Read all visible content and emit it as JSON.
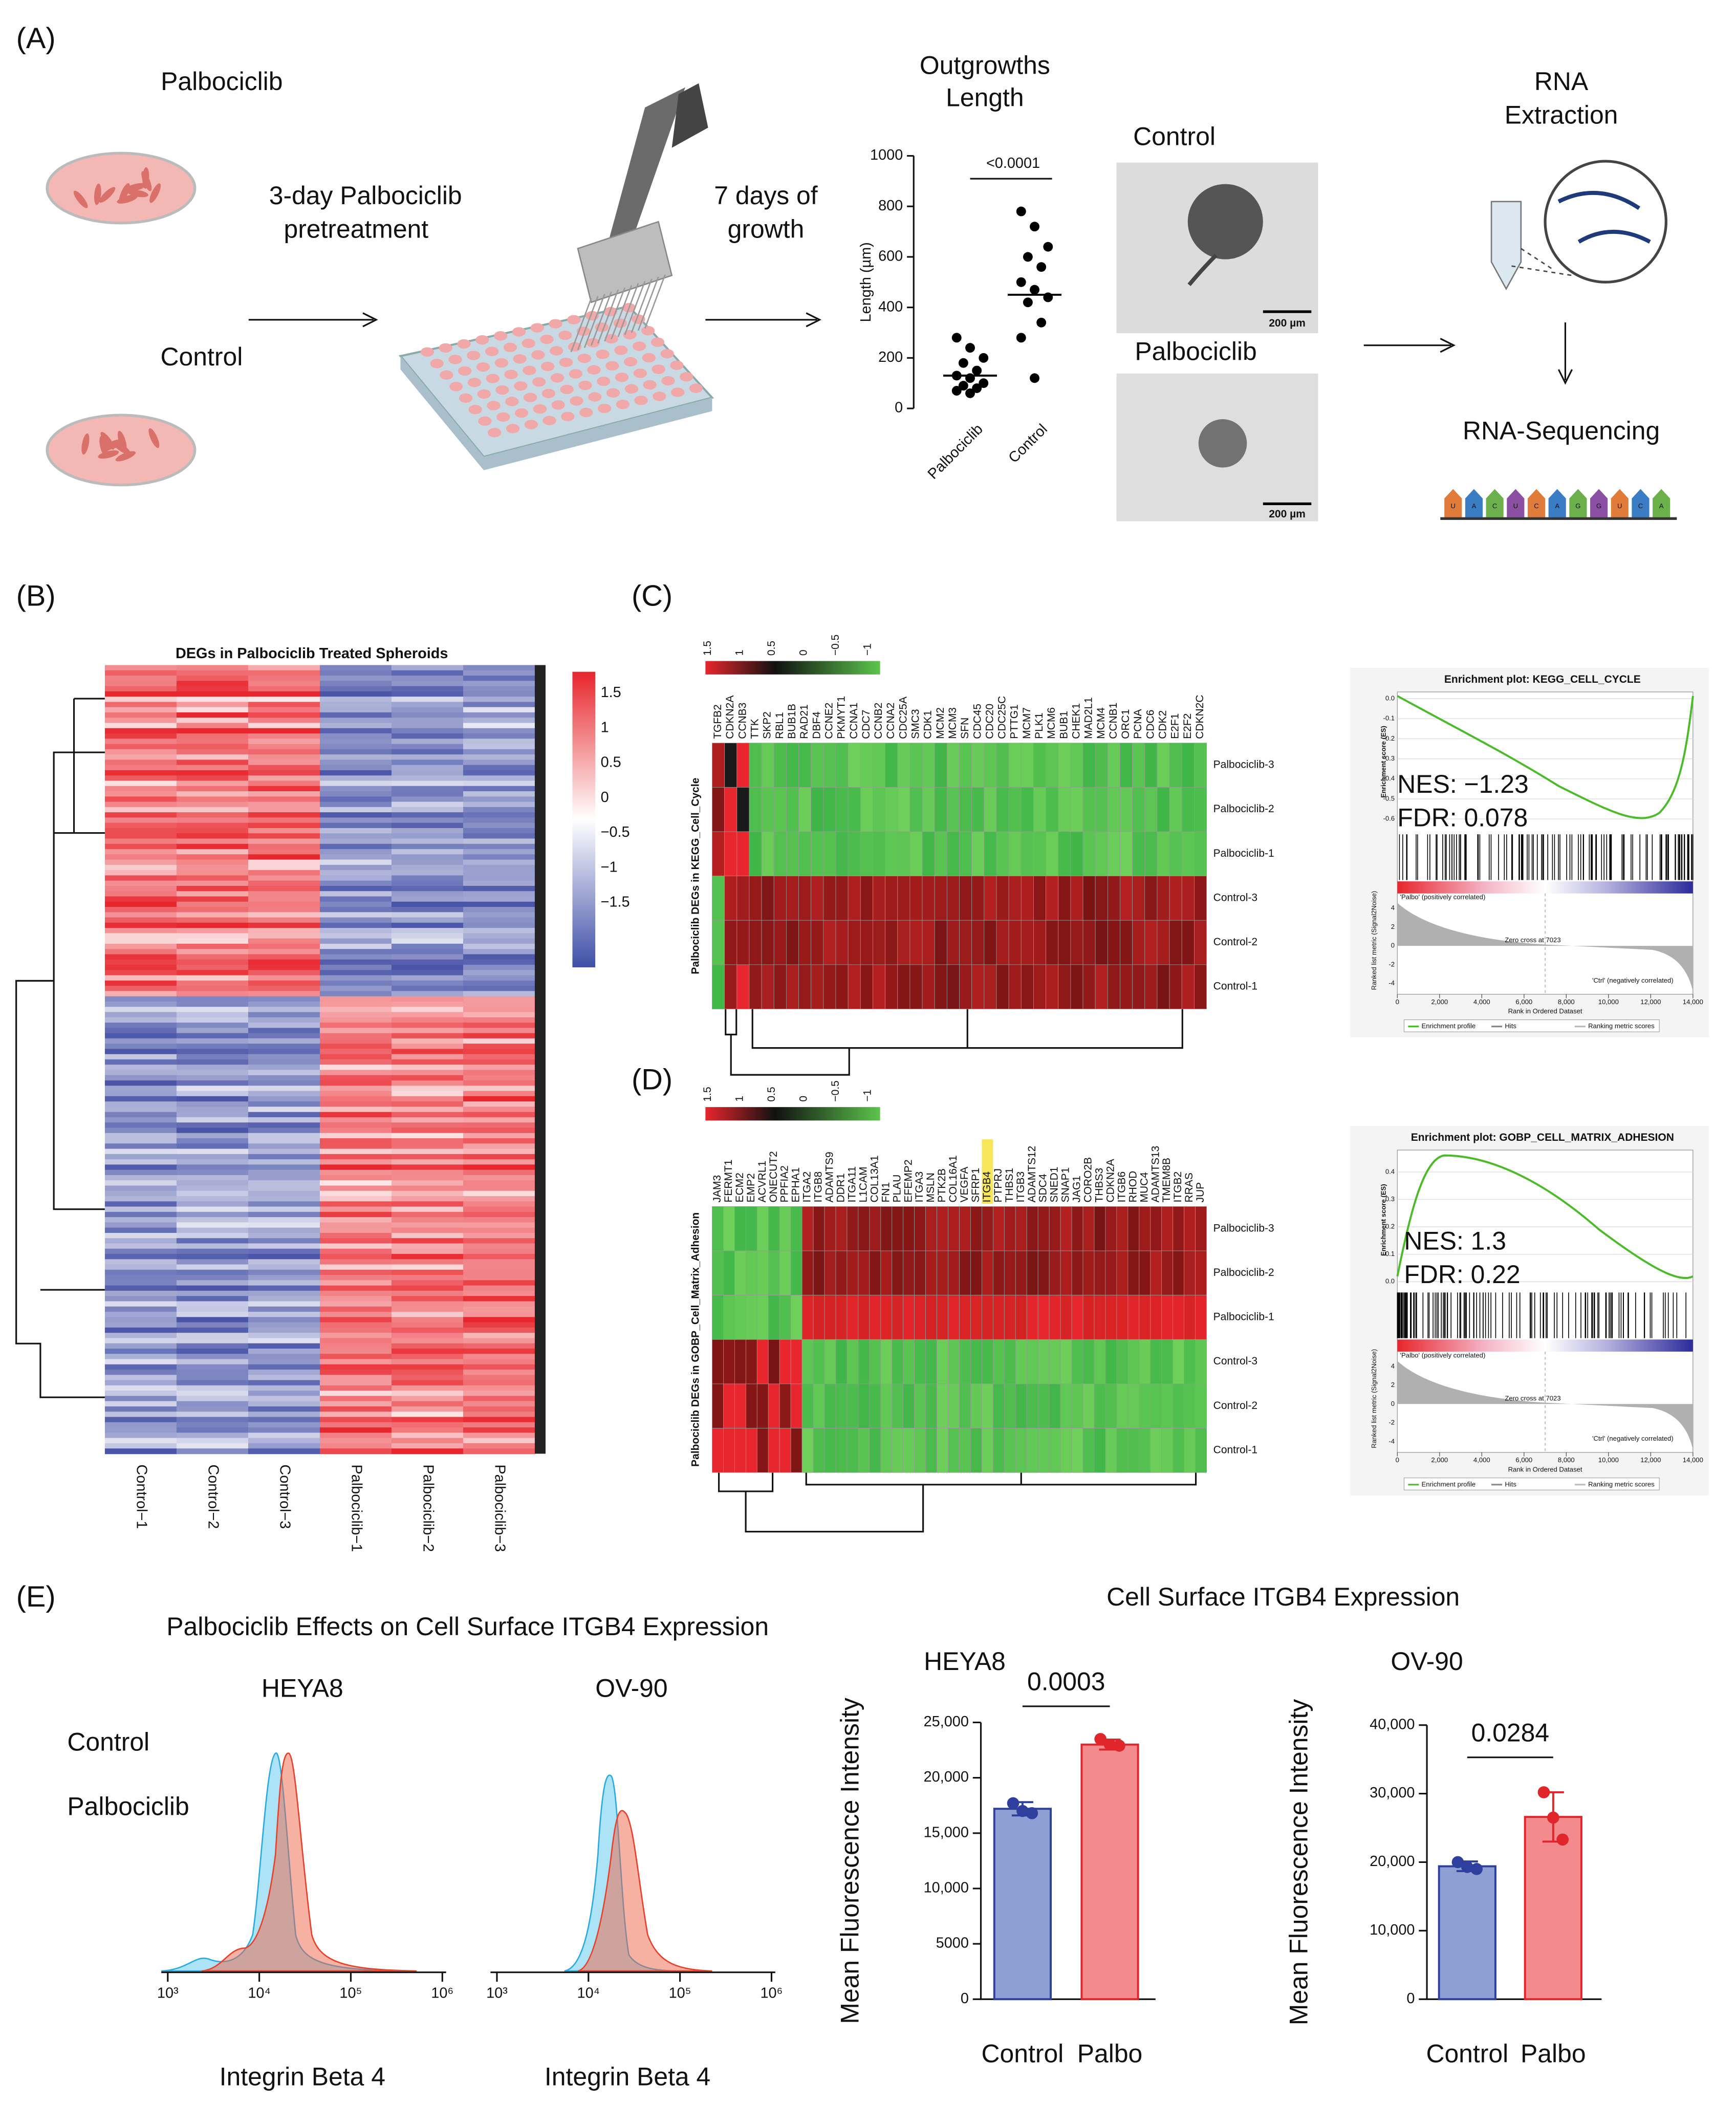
{
  "panel_labels": [
    "(A)",
    "(B)",
    "(C)",
    "(D)",
    "(E)"
  ],
  "schematic": {
    "palbociclib": "Palbociclib",
    "control": "Control",
    "pretreatment": [
      "3-day Palbociclib",
      "pretreatment"
    ],
    "growth": [
      "7 days of",
      "growth"
    ],
    "image_labels": [
      "Control",
      "Palbociclib"
    ],
    "scale_bar": "200 µm",
    "rna_extraction": [
      "RNA",
      "Extraction"
    ],
    "rna_sequencing": "RNA-Sequencing",
    "rna_bases": [
      "U",
      "A",
      "C",
      "U",
      "C",
      "A",
      "G",
      "G",
      "U",
      "C",
      "A"
    ]
  },
  "chart_data": [
    {
      "type": "dot",
      "title": [
        "Outgrowths",
        "Length"
      ],
      "ylabel": "Length (µm)",
      "categories": [
        "Palbociclib",
        "Control"
      ],
      "groups": [
        [
          280,
          240,
          200,
          180,
          150,
          130,
          120,
          100,
          90,
          80,
          70,
          60
        ],
        [
          780,
          720,
          640,
          600,
          560,
          500,
          470,
          440,
          420,
          340,
          280,
          120
        ]
      ],
      "medians": [
        130,
        450
      ],
      "annotation": "<0.0001",
      "ylim": [
        0,
        1000
      ],
      "yticks": [
        0,
        200,
        400,
        600,
        800,
        1000
      ],
      "color": "#000000"
    },
    {
      "type": "bar",
      "title": "HEYA8",
      "ylabel": "Mean Fluorescence Intensity",
      "categories": [
        "Control",
        "Palbo"
      ],
      "values": [
        17200,
        23000
      ],
      "errors": [
        600,
        450
      ],
      "points": [
        [
          17700,
          17000,
          16800
        ],
        [
          23500,
          23000,
          22900
        ]
      ],
      "colors": [
        "#8e9fd3",
        "#f28a8e"
      ],
      "edge_colors": [
        "#2e3f9e",
        "#e0252b"
      ],
      "annotation": "0.0003",
      "ylim": [
        0,
        25000
      ],
      "yticks": [
        0,
        5000,
        {
          "value": 10000,
          "label": "10,000"
        },
        {
          "value": 15000,
          "label": "15,000"
        },
        {
          "value": 20000,
          "label": "20,000"
        },
        {
          "value": 25000,
          "label": "25,000"
        }
      ]
    },
    {
      "type": "bar",
      "title": "OV-90",
      "ylabel": "Mean Fluorescence Intensity",
      "categories": [
        "Control",
        "Palbo"
      ],
      "values": [
        19400,
        26600
      ],
      "errors": [
        700,
        3600
      ],
      "points": [
        [
          20000,
          19300,
          19000
        ],
        [
          30200,
          26500,
          23300
        ]
      ],
      "colors": [
        "#8e9fd3",
        "#f28a8e"
      ],
      "edge_colors": [
        "#2e3f9e",
        "#e0252b"
      ],
      "annotation": "0.0284",
      "ylim": [
        0,
        40000
      ],
      "yticks": [
        0,
        {
          "value": 10000,
          "label": "10,000"
        },
        {
          "value": 20000,
          "label": "20,000"
        },
        {
          "value": 30000,
          "label": "30,000"
        },
        {
          "value": 40000,
          "label": "40,000"
        }
      ]
    }
  ],
  "bar_supertitle": "Cell Surface ITGB4 Expression",
  "heatmap_b": {
    "title": "DEGs in Palbociclib Treated Spheroids",
    "columns": [
      "Control−1",
      "Control−2",
      "Control−3",
      "Palbociclib−1",
      "Palbociclib−2",
      "Palbociclib−3"
    ],
    "colorbar_ticks": [
      1.5,
      1,
      0.5,
      0,
      {
        "value": -0.5,
        "label": "−0.5"
      },
      {
        "value": -1,
        "label": "−1"
      },
      {
        "value": -1.5,
        "label": "−1.5"
      }
    ]
  },
  "heatmap_c": {
    "ylabel": "Palbociclib DEGs in KEGG_Cell_Cycle",
    "rows": [
      "Palbociclib-3",
      "Palbociclib-2",
      "Palbociclib-1",
      "Control-3",
      "Control-2",
      "Control-1"
    ],
    "genes": [
      "TGFB2",
      "CDKN2A",
      "CCNB3",
      "TTK",
      "SKP2",
      "RBL1",
      "BUB1B",
      "RAD21",
      "DBF4",
      "CCNE2",
      "PKMYT1",
      "CCNA1",
      "CDC7",
      "CCNB2",
      "CCNA2",
      "CDC25A",
      "SMC3",
      "CDK1",
      "MCM2",
      "MCM3",
      "SFN",
      "CDC45",
      "CDC20",
      "CDC25C",
      "PTTG1",
      "MCM7",
      "PLK1",
      "MCM6",
      "BUB1",
      "CHEK1",
      "MAD2L1",
      "MCM4",
      "CCNB1",
      "ORC1",
      "PCNA",
      "CDC6",
      "CDK2",
      "E2F1",
      "E2F2",
      "CDKN2C"
    ],
    "colorbar_ticks": [
      1.5,
      1,
      0.5,
      0,
      {
        "value": -0.5,
        "label": "−0.5"
      },
      {
        "value": -1,
        "label": "−1"
      }
    ]
  },
  "heatmap_d": {
    "ylabel": "Palbociclib DEGs in GOBP_Cell_Matrix_Adhesion",
    "rows": [
      "Palbociclib-3",
      "Palbociclib-2",
      "Palbociclib-1",
      "Control-3",
      "Control-2",
      "Control-1"
    ],
    "genes": [
      "JAM3",
      "FERMT1",
      "ECM2",
      "EMP2",
      "ACVRL1",
      "ONECUT2",
      "PPFIA2",
      "EPHA1",
      "ITGA2",
      "ITGB8",
      "ADAMTS9",
      "DDR1",
      "ITGA11",
      "L1CAM",
      "COL13A1",
      "FN1",
      "PLAU",
      "EFEMP2",
      "ITGA3",
      "MSLN",
      "PTK2B",
      "COL16A1",
      "VEGFA",
      "SFRP1",
      "ITGB4",
      "PTPRJ",
      "THBS1",
      "ITGB3",
      "ADAMTS12",
      "SDC4",
      "SNED1",
      "SNAP1",
      "JAG1",
      "CORO2B",
      "THBS3",
      "CDKN2A",
      "ITGB6",
      "RHOD",
      "MUC4",
      "ADAMTS13",
      "TMEM8B",
      "ITGB2",
      "RRAS",
      "JUP"
    ],
    "highlight": "ITGB4",
    "colorbar_ticks": [
      1.5,
      1,
      0.5,
      0,
      {
        "value": -0.5,
        "label": "−0.5"
      },
      {
        "value": -1,
        "label": "−1"
      }
    ]
  },
  "gsea": {
    "plots": [
      {
        "title": "Enrichment plot: KEGG_CELL_CYCLE",
        "nes": "NES: −1.23",
        "fdr": "FDR: 0.078",
        "eslim": [
          -0.65,
          0.02
        ],
        "esticks": [
          {
            "value": 0,
            "label": "0.0"
          },
          -0.1,
          -0.2,
          -0.3,
          -0.4,
          -0.5,
          -0.6
        ]
      },
      {
        "title": "Enrichment plot: GOBP_CELL_MATRIX_ADHESION",
        "nes": "NES: 1.3",
        "fdr": "FDR: 0.22",
        "eslim": [
          -0.02,
          0.47
        ],
        "esticks": [
          0.4,
          0.3,
          0.2,
          0.1,
          {
            "value": 0,
            "label": "0.0"
          }
        ]
      }
    ],
    "es_label": "Enrichment score (ES)",
    "rank_label": "Ranked list metric (Signal2Noise)",
    "xlabel": "Rank in Ordered Dataset",
    "pos_label": "'Palbo' (positively correlated)",
    "neg_label": "'Ctrl' (negatively correlated)",
    "zero_cross": "Zero cross at 7023",
    "legend": [
      "Enrichment profile",
      "Hits",
      "Ranking metric scores"
    ],
    "xlim": [
      0,
      14000
    ],
    "xticks": [
      0,
      {
        "value": 2000,
        "label": "2,000"
      },
      {
        "value": 4000,
        "label": "4,000"
      },
      {
        "value": 6000,
        "label": "6,000"
      },
      {
        "value": 8000,
        "label": "8,000"
      },
      {
        "value": 10000,
        "label": "10,000"
      },
      {
        "value": 12000,
        "label": "12,000"
      },
      {
        "value": 14000,
        "label": "14,000"
      }
    ],
    "ranklim": [
      -5,
      5
    ],
    "rankticks": [
      4,
      2,
      0,
      -2,
      -4
    ]
  },
  "flow": {
    "title": "Palbociclib Effects on Cell Surface ITGB4 Expression",
    "panels": [
      "HEYA8",
      "OV-90"
    ],
    "legend": [
      "Control",
      "Palbociclib"
    ],
    "colors": [
      "#29abe2",
      "#f15a29"
    ],
    "xlabel": "Integrin Beta 4",
    "xscale": "log",
    "xlim": [
      850,
      1100000
    ],
    "xticks": [
      {
        "value": 1000,
        "label": "10³"
      },
      {
        "value": 10000,
        "label": "10⁴"
      },
      {
        "value": 100000,
        "label": "10⁵"
      },
      {
        "value": 1000000,
        "label": "10⁶"
      }
    ]
  }
}
